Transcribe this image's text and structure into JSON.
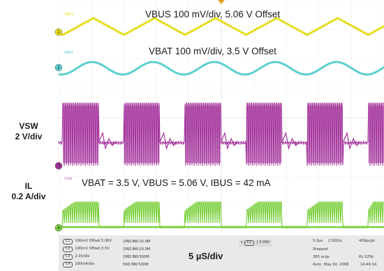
{
  "chart_data": {
    "type": "line",
    "title": "",
    "xlabel": "5 µS/div",
    "series": [
      {
        "name": "VBUS",
        "color": "#e6dc1e"
      },
      {
        "name": "VBAT",
        "color": "#5ccfcf"
      },
      {
        "name": "VSW",
        "color": "#a4349c"
      },
      {
        "name": "IL",
        "color": "#79cf3a"
      }
    ],
    "channel_labels": {
      "vsw": [
        "VSW",
        "2 V/div"
      ],
      "il": [
        "IL",
        "0.2 A/div"
      ]
    },
    "trace_tags": {
      "vbat": "VBAT",
      "vsw": "VSW"
    },
    "annotations": {
      "vbus": "VBUS 100 mV/div, 5.06 V Offset",
      "vbat": "VBAT 100 mV/div, 3.5 V Offset",
      "conditions": "VBAT = 3.5 V, VBUS = 5.06 V, IBUS = 42 mA"
    },
    "grid": true
  },
  "status": {
    "ch1": {
      "tag": "C1",
      "scale": "100mV",
      "offset": "Offset:5.06V",
      "imp": "1MΩ",
      "bw": "BW:20.0M"
    },
    "ch2": {
      "tag": "C2",
      "scale": "100mV",
      "offset": "Offset:3.5V",
      "imp": "1MΩ",
      "bw": "BW:20.0M"
    },
    "ch3": {
      "tag": "C3",
      "scale": "2.0V/div",
      "imp": "1MΩ",
      "bw": "BW:500M"
    },
    "ch4": {
      "tag": "C4",
      "scale": "200mA/div",
      "imp": "50Ω",
      "bw": "BW:500M"
    },
    "trigger": {
      "tag": "C1",
      "level": "5.08V"
    },
    "timebase": "5.0µs",
    "sample_rate": "2.5GS/s",
    "resolution": "400ps/pt",
    "state": "Stopped",
    "acqs": "365 acqs",
    "record": "RL:125k",
    "mode": "Auto",
    "date": "May 02, 2008",
    "time": "14:49:14"
  }
}
